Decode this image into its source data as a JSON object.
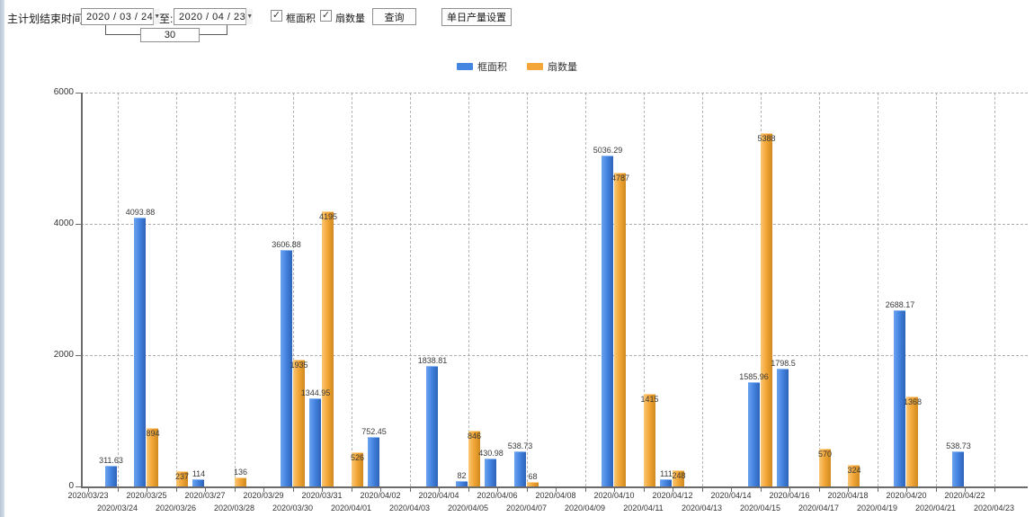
{
  "toolbar": {
    "plan_end_label": "主计划结束时间:",
    "date_from": "2020 / 03 / 24",
    "to_label": "至:",
    "date_to": "2020 / 04 / 23",
    "interval_days": "30",
    "checkboxes": [
      {
        "label": "框面积",
        "checked": true
      },
      {
        "label": "扇数量",
        "checked": true
      }
    ],
    "query_button": "查询",
    "daily_output_button": "单日产量设置"
  },
  "legend": {
    "items": [
      {
        "label": "框面积",
        "color": "#4585e2"
      },
      {
        "label": "扇数量",
        "color": "#f4a738"
      }
    ]
  },
  "chart_data": {
    "type": "bar",
    "title": "",
    "xlabel": "",
    "ylabel": "",
    "ylim": [
      0,
      6000
    ],
    "yticks": [
      0,
      2000,
      4000,
      6000
    ],
    "grid": true,
    "legend_position": "top",
    "categories": [
      "2020/03/23",
      "2020/03/24",
      "2020/03/25",
      "2020/03/26",
      "2020/03/27",
      "2020/03/28",
      "2020/03/29",
      "2020/03/30",
      "2020/03/31",
      "2020/04/01",
      "2020/04/02",
      "2020/04/03",
      "2020/04/04",
      "2020/04/05",
      "2020/04/06",
      "2020/04/07",
      "2020/04/08",
      "2020/04/09",
      "2020/04/10",
      "2020/04/11",
      "2020/04/12",
      "2020/04/13",
      "2020/04/14",
      "2020/04/15",
      "2020/04/16",
      "2020/04/17",
      "2020/04/18",
      "2020/04/19",
      "2020/04/20",
      "2020/04/21",
      "2020/04/22",
      "2020/04/23"
    ],
    "series": [
      {
        "name": "框面积",
        "color": "#4585e2",
        "values": [
          null,
          311.63,
          4093.88,
          null,
          114,
          null,
          null,
          3606.88,
          1344.95,
          null,
          752.45,
          null,
          1838.81,
          82,
          430.98,
          538.73,
          null,
          null,
          5036.29,
          null,
          111,
          null,
          null,
          1585.96,
          1798.5,
          null,
          null,
          null,
          2688.17,
          null,
          538.73,
          null
        ]
      },
      {
        "name": "扇数量",
        "color": "#f4a738",
        "values": [
          null,
          null,
          894,
          237,
          null,
          136,
          null,
          1935,
          4195,
          526,
          null,
          null,
          null,
          846,
          null,
          68,
          null,
          null,
          4787,
          1415,
          248,
          null,
          null,
          5388,
          null,
          570,
          324,
          null,
          1368,
          null,
          null,
          null
        ]
      }
    ]
  }
}
